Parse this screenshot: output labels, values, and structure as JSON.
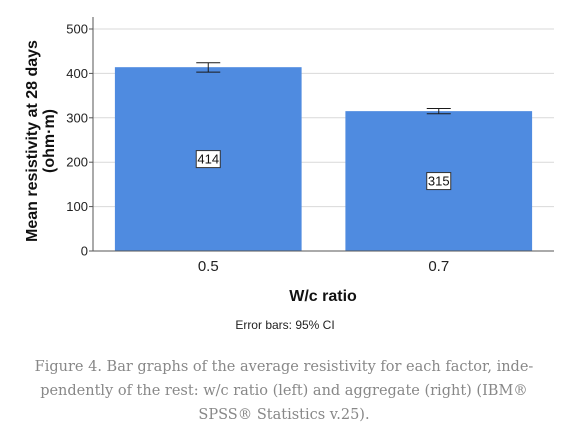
{
  "chart_data": {
    "type": "bar",
    "categories": [
      "0.5",
      "0.7"
    ],
    "values": [
      414,
      315
    ],
    "data_labels": [
      "414",
      "315"
    ],
    "error_bars": [
      {
        "low": 403,
        "high": 424
      },
      {
        "low": 309,
        "high": 321
      }
    ],
    "xlabel": "W/c ratio",
    "ylabel_line1": "Mean resistivity at 28 days",
    "ylabel_line2": "(ohm·m)",
    "ylim": [
      0,
      500
    ],
    "yticks": [
      0,
      100,
      200,
      300,
      400,
      500
    ],
    "grid": true,
    "bar_color": "#4f8be0",
    "error_note": "Error bars: 95% CI"
  },
  "caption": {
    "line1": "Figure 4. Bar graphs of the average resistivity for each factor, inde-",
    "line2": "pendently of the rest: w/c ratio (left) and aggregate (right) (IBM®",
    "line3": "SPSS® Statistics v.25)."
  }
}
